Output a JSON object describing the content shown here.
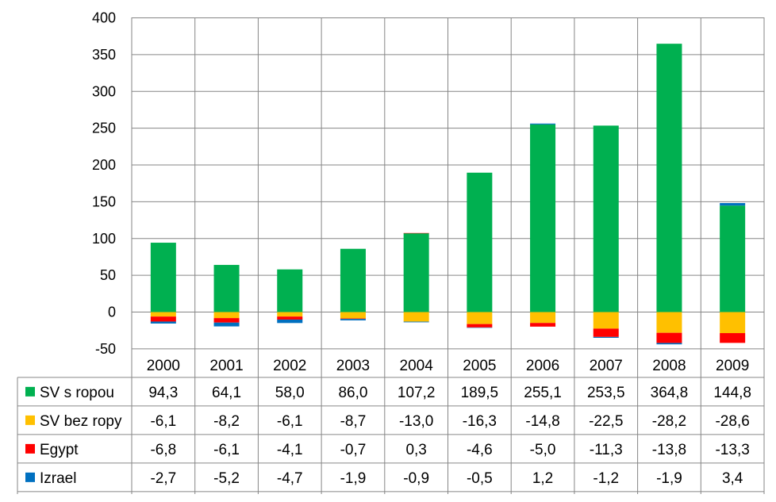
{
  "chart_data": {
    "type": "bar",
    "stacked": true,
    "categories": [
      "2000",
      "2001",
      "2002",
      "2003",
      "2004",
      "2005",
      "2006",
      "2007",
      "2008",
      "2009"
    ],
    "ylim": [
      -50,
      400
    ],
    "yticks": [
      -50,
      0,
      50,
      100,
      150,
      200,
      250,
      300,
      350,
      400
    ],
    "grid": true,
    "legend": "data-table",
    "series": [
      {
        "name": "SV s ropou",
        "color": "#00B050",
        "values": [
          94.3,
          64.1,
          58.0,
          86.0,
          107.2,
          189.5,
          255.1,
          253.5,
          364.8,
          144.8
        ],
        "labels": [
          "94,3",
          "64,1",
          "58,0",
          "86,0",
          "107,2",
          "189,5",
          "255,1",
          "253,5",
          "364,8",
          "144,8"
        ]
      },
      {
        "name": "SV bez ropy",
        "color": "#FFC000",
        "values": [
          -6.1,
          -8.2,
          -6.1,
          -8.7,
          -13.0,
          -16.3,
          -14.8,
          -22.5,
          -28.2,
          -28.6
        ],
        "labels": [
          "-6,1",
          "-8,2",
          "-6,1",
          "-8,7",
          "-13,0",
          "-16,3",
          "-14,8",
          "-22,5",
          "-28,2",
          "-28,6"
        ]
      },
      {
        "name": "Egypt",
        "color": "#FF0000",
        "values": [
          -6.8,
          -6.1,
          -4.1,
          -0.7,
          0.3,
          -4.6,
          -5.0,
          -11.3,
          -13.8,
          -13.3
        ],
        "labels": [
          "-6,8",
          "-6,1",
          "-4,1",
          "-0,7",
          "0,3",
          "-4,6",
          "-5,0",
          "-11,3",
          "-13,8",
          "-13,3"
        ]
      },
      {
        "name": "Izrael",
        "color": "#0070C0",
        "values": [
          -2.7,
          -5.2,
          -4.7,
          -1.9,
          -0.9,
          -0.5,
          1.2,
          -1.2,
          -1.9,
          3.4
        ],
        "labels": [
          "-2,7",
          "-5,2",
          "-4,7",
          "-1,9",
          "-0,9",
          "-0,5",
          "1,2",
          "-1,2",
          "-1,9",
          "3,4"
        ]
      }
    ]
  }
}
